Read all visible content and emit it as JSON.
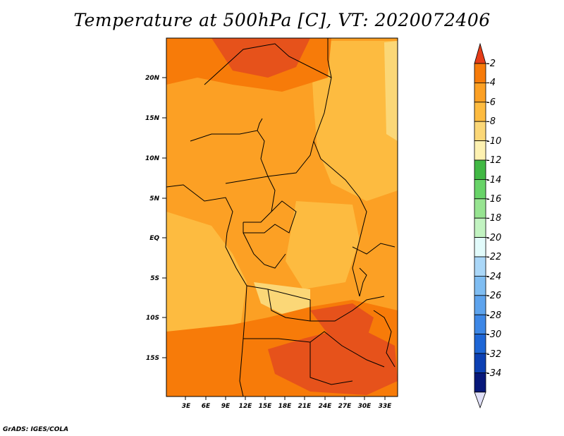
{
  "title": "Temperature at 500hPa [C], VT: 2020072406",
  "credit": "GrADS: IGES/COLA",
  "map": {
    "lat_ticks": [
      "20N",
      "15N",
      "10N",
      "5N",
      "EQ",
      "5S",
      "10S",
      "15S"
    ],
    "lon_ticks": [
      "3E",
      "6E",
      "9E",
      "12E",
      "15E",
      "18E",
      "21E",
      "24E",
      "27E",
      "30E",
      "33E"
    ]
  },
  "colorbar": {
    "labels": [
      "-2",
      "-4",
      "-6",
      "-8",
      "-10",
      "-12",
      "-14",
      "-16",
      "-18",
      "-20",
      "-22",
      "-24",
      "-26",
      "-28",
      "-30",
      "-32",
      "-34"
    ],
    "colors": [
      "#e6521b",
      "#f77b09",
      "#fca024",
      "#fdbb40",
      "#fbd777",
      "#fdf1b1",
      "#41b844",
      "#68d368",
      "#97e491",
      "#c2f3c1",
      "#e2fbfb",
      "#aad7f8",
      "#7fbdf2",
      "#5da3ed",
      "#3d87e6",
      "#1e66d6",
      "#0c40b3",
      "#07187a"
    ],
    "under_color": "#e0e0f8",
    "over_color": "#e53c18"
  },
  "colors": {
    "field_base": "#fca024",
    "field_light": "#fdbb40",
    "field_pale": "#fbd777",
    "field_dark": "#f77b09",
    "field_darkest": "#e6521b"
  }
}
